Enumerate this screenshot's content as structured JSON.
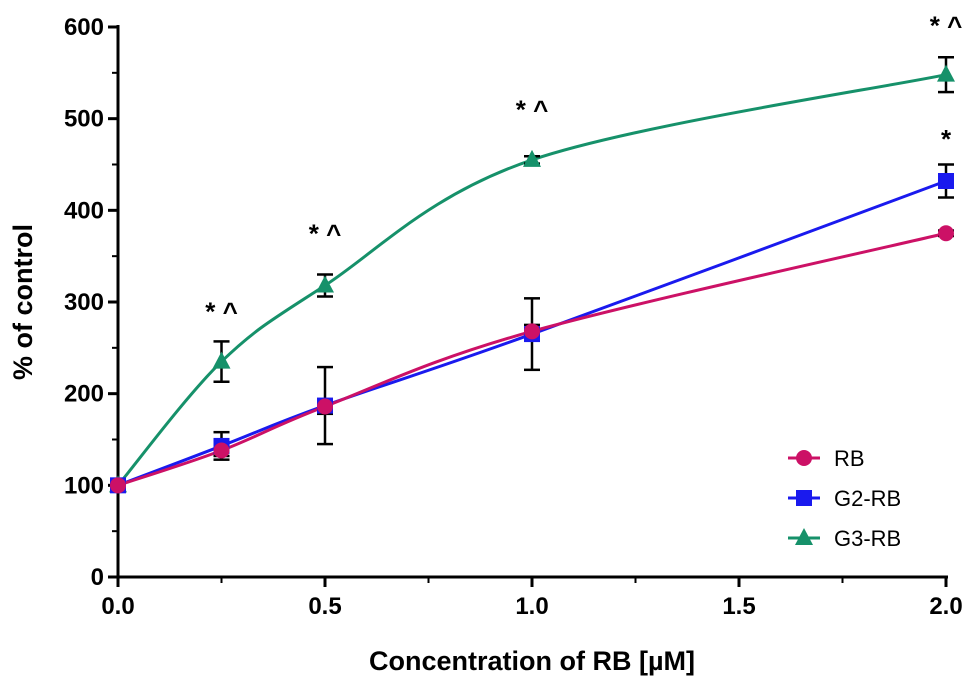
{
  "chart_data": {
    "type": "line",
    "title": "",
    "xlabel": "Concentration of RB [µM]",
    "ylabel": "% of control",
    "xlim": [
      0,
      2.0
    ],
    "ylim": [
      0,
      600
    ],
    "x_ticks": [
      0.0,
      0.5,
      1.0,
      1.5,
      2.0
    ],
    "x_tick_labels": [
      "0.0",
      "0.5",
      "1.0",
      "1.5",
      "2.0"
    ],
    "y_ticks": [
      0,
      100,
      200,
      300,
      400,
      500,
      600
    ],
    "y_tick_labels": [
      "0",
      "100",
      "200",
      "300",
      "400",
      "500",
      "600"
    ],
    "grid": false,
    "legend_position": "bottom-right",
    "series": [
      {
        "name": "RB",
        "color": "#cc1166",
        "marker": "circle",
        "x": [
          0,
          0.25,
          0.5,
          1.0,
          2.0
        ],
        "y": [
          100,
          138,
          186,
          268,
          375
        ],
        "err": [
          0,
          6,
          8,
          7,
          3
        ]
      },
      {
        "name": "G2-RB",
        "color": "#1a1aee",
        "marker": "square",
        "x": [
          0,
          0.25,
          0.5,
          1.0,
          2.0
        ],
        "y": [
          100,
          143,
          187,
          265,
          432
        ],
        "err": [
          0,
          15,
          42,
          39,
          18
        ]
      },
      {
        "name": "G3-RB",
        "color": "#16916a",
        "marker": "triangle",
        "x": [
          0,
          0.25,
          0.5,
          1.0,
          2.0
        ],
        "y": [
          100,
          235,
          318,
          455,
          548
        ],
        "err": [
          0,
          22,
          12,
          4,
          19
        ]
      }
    ],
    "annotations": [
      {
        "text": "* ^",
        "x": 0.25,
        "y": 280
      },
      {
        "text": "* ^",
        "x": 0.5,
        "y": 365
      },
      {
        "text": "* ^",
        "x": 1.0,
        "y": 500
      },
      {
        "text": "*",
        "x": 2.0,
        "y": 468
      },
      {
        "text": "* ^",
        "x": 2.0,
        "y": 592
      }
    ]
  }
}
